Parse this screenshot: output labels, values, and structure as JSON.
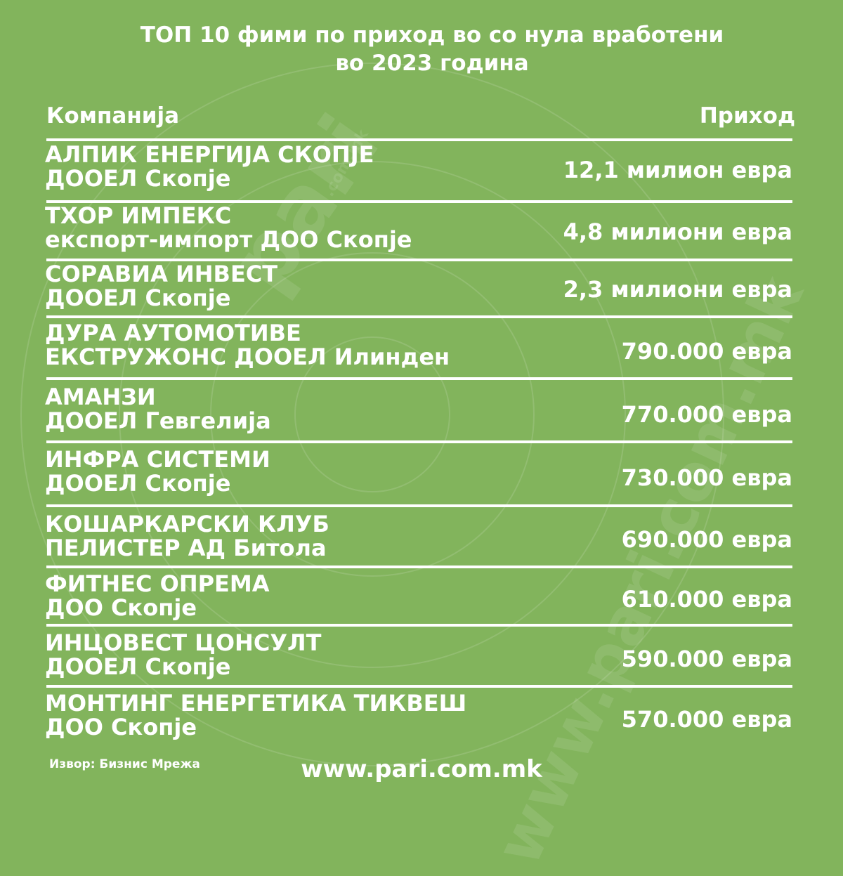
{
  "title": {
    "line1": "ТОП 10 фими по приход во со нула вработени",
    "line2": "во 2023 година"
  },
  "header": {
    "company": "Компанија",
    "revenue": "Приход"
  },
  "chart_data": {
    "type": "table",
    "columns": [
      "Компанија",
      "Приход"
    ],
    "rows": [
      {
        "name_line1": "АЛПИК ЕНЕРГИЈА СКОПЈЕ",
        "name_line2": "ДООЕЛ Скопје",
        "revenue": "12,1 милион евра"
      },
      {
        "name_line1": "ТХОР ИМПЕКС",
        "name_line2": "експорт-импорт ДОО Скопје",
        "revenue": "4,8 милиони евра"
      },
      {
        "name_line1": "СОРАВИА ИНВЕСТ",
        "name_line2": "ДООЕЛ Скопје",
        "revenue": "2,3 милиони евра"
      },
      {
        "name_line1": "ДУРА АУТОМОТИВЕ",
        "name_line2": "ЕКСТРУЖОНС ДООЕЛ Илинден",
        "revenue": "790.000 евра"
      },
      {
        "name_line1": "АМАНЗИ",
        "name_line2": "ДООЕЛ Гевгелија",
        "revenue": "770.000 евра"
      },
      {
        "name_line1": "ИНФРА СИСТЕМИ",
        "name_line2": "ДООЕЛ Скопје",
        "revenue": "730.000 евра"
      },
      {
        "name_line1": "КОШАРКАРСКИ КЛУБ",
        "name_line2": "ПЕЛИСТЕР АД Битола",
        "revenue": "690.000 евра"
      },
      {
        "name_line1": "ФИТНЕС ОПРЕМА",
        "name_line2": "ДОО Скопје",
        "revenue": "610.000 евра"
      },
      {
        "name_line1": "ИНЦОВЕСТ ЦОНСУЛТ",
        "name_line2": "ДООЕЛ Скопје",
        "revenue": "590.000 евра"
      },
      {
        "name_line1": "МОНТИНГ ЕНЕРГЕТИКА ТИКВЕШ",
        "name_line2": "ДОО Скопје",
        "revenue": "570.000 евра"
      }
    ]
  },
  "footer": {
    "source": "Извор: Бизнис Мрежа",
    "website": "www.pari.com.mk"
  },
  "watermark": {
    "text1": "pari",
    "text2": "www.pari.com.mk",
    "text3": ".com.mk"
  },
  "colors": {
    "background": "#82b45c",
    "text": "#ffffff",
    "separator": "#ffffff"
  }
}
